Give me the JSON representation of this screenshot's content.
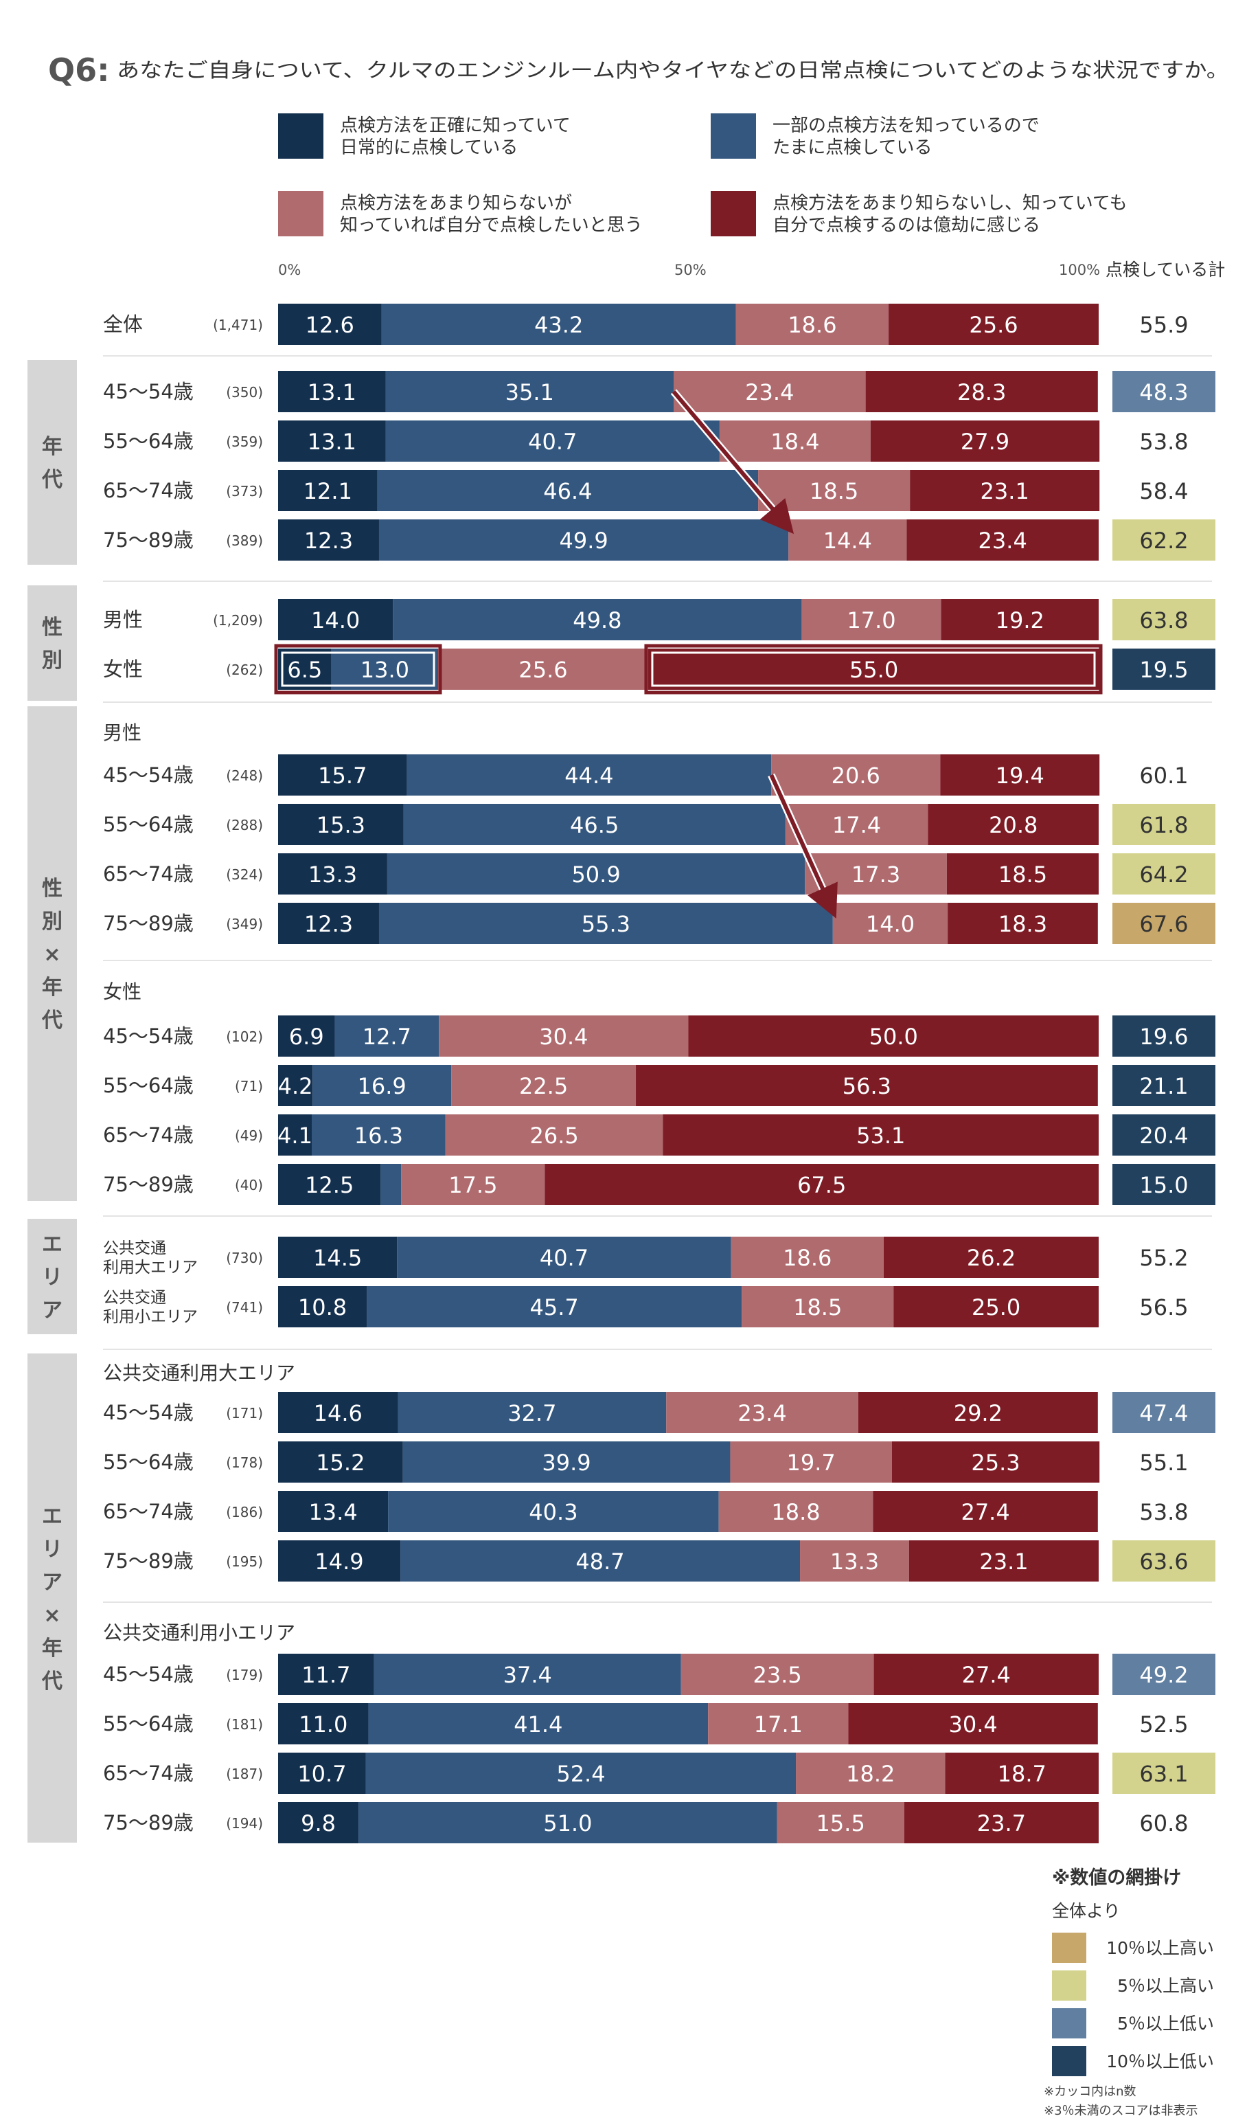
{
  "question": {
    "label": "Q6:",
    "text": "あなたご自身について、クルマのエンジンルーム内やタイヤなどの日常点検についてどのような状況ですか。"
  },
  "colors": {
    "s1": "#14304f",
    "s2": "#34577f",
    "s3": "#b06b6f",
    "s4": "#7e1c26",
    "sidebar": "#d6d6d6",
    "hl_up10": "#c8a86a",
    "hl_up5": "#d3d38e",
    "hl_down5": "#617fa0",
    "hl_down10": "#21415f",
    "arrow": "#7e1c26"
  },
  "legend": [
    {
      "key": "s1",
      "line1": "点検方法を正確に知っていて",
      "line2": "日常的に点検している"
    },
    {
      "key": "s2",
      "line1": "一部の点検方法を知っているので",
      "line2": "たまに点検している"
    },
    {
      "key": "s3",
      "line1": "点検方法をあまり知らないが",
      "line2": "知っていれば自分で点検したいと思う"
    },
    {
      "key": "s4",
      "line1": "点検方法をあまり知らないし、知っていても",
      "line2": "自分で点検するのは億劫に感じる"
    }
  ],
  "axis": {
    "t0": "0%",
    "t50": "50%",
    "t100": "100%",
    "total_header": "点検している計"
  },
  "shading_legend": {
    "title": "※数値の網掛け",
    "subtitle": "全体より",
    "items": [
      {
        "key": "up10",
        "label": "10％以上高い"
      },
      {
        "key": "up5",
        "label": "5％以上高い"
      },
      {
        "key": "down5",
        "label": "5％以上低い"
      },
      {
        "key": "down10",
        "label": "10％以上低い"
      }
    ]
  },
  "notes": [
    "※カッコ内はn数",
    "※3％未満のスコアは非表示"
  ],
  "chart_data": {
    "type": "bar",
    "orientation": "horizontal",
    "stacked": true,
    "percent": true,
    "xlim": [
      0,
      100
    ],
    "series_names": [
      "点検方法を正確に知っていて日常的に点検している",
      "一部の点検方法を知っているのでたまに点検している",
      "点検方法をあまり知らないが知っていれば自分で点検したいと思う",
      "点検方法をあまり知らないし、知っていても自分で点検するのは億劫に感じる"
    ],
    "groups": [
      {
        "side": "",
        "subheads": [],
        "rows": [
          {
            "label": "全体",
            "n": "(1,471)",
            "values": [
              12.6,
              43.2,
              18.6,
              25.6
            ],
            "total": "55.9",
            "hl": ""
          }
        ]
      },
      {
        "side": "年代",
        "subheads": [],
        "rows": [
          {
            "label": "45～54歳",
            "n": "(350)",
            "values": [
              13.1,
              35.1,
              23.4,
              28.3
            ],
            "total": "48.3",
            "hl": "down5"
          },
          {
            "label": "55～64歳",
            "n": "(359)",
            "values": [
              13.1,
              40.7,
              18.4,
              27.9
            ],
            "total": "53.8",
            "hl": ""
          },
          {
            "label": "65～74歳",
            "n": "(373)",
            "values": [
              12.1,
              46.4,
              18.5,
              23.1
            ],
            "total": "58.4",
            "hl": ""
          },
          {
            "label": "75～89歳",
            "n": "(389)",
            "values": [
              12.3,
              49.9,
              14.4,
              23.4
            ],
            "total": "62.2",
            "hl": "up5"
          }
        ]
      },
      {
        "side": "性別",
        "subheads": [],
        "rows": [
          {
            "label": "男性",
            "n": "(1,209)",
            "values": [
              14.0,
              49.8,
              17.0,
              19.2
            ],
            "total": "63.8",
            "hl": "up5"
          },
          {
            "label": "女性",
            "n": "(262)",
            "values": [
              6.5,
              13.0,
              25.6,
              55.0
            ],
            "total": "19.5",
            "hl": "down10"
          }
        ]
      },
      {
        "side": "性別×年代",
        "subheads": [
          {
            "before": 0,
            "text": "男性"
          },
          {
            "before": 4,
            "text": "女性"
          }
        ],
        "rows": [
          {
            "label": "45～54歳",
            "n": "(248)",
            "values": [
              15.7,
              44.4,
              20.6,
              19.4
            ],
            "total": "60.1",
            "hl": ""
          },
          {
            "label": "55～64歳",
            "n": "(288)",
            "values": [
              15.3,
              46.5,
              17.4,
              20.8
            ],
            "total": "61.8",
            "hl": "up5"
          },
          {
            "label": "65～74歳",
            "n": "(324)",
            "values": [
              13.3,
              50.9,
              17.3,
              18.5
            ],
            "total": "64.2",
            "hl": "up5"
          },
          {
            "label": "75～89歳",
            "n": "(349)",
            "values": [
              12.3,
              55.3,
              14.0,
              18.3
            ],
            "total": "67.6",
            "hl": "up10"
          },
          {
            "label": "45～54歳",
            "n": "(102)",
            "values": [
              6.9,
              12.7,
              30.4,
              50.0
            ],
            "total": "19.6",
            "hl": "down10"
          },
          {
            "label": "55～64歳",
            "n": "(71)",
            "values": [
              4.2,
              16.9,
              22.5,
              56.3
            ],
            "total": "21.1",
            "hl": "down10"
          },
          {
            "label": "65～74歳",
            "n": "(49)",
            "values": [
              4.1,
              16.3,
              26.5,
              53.1
            ],
            "total": "20.4",
            "hl": "down10"
          },
          {
            "label": "75～89歳",
            "n": "(40)",
            "values": [
              12.5,
              2.5,
              17.5,
              67.5
            ],
            "total": "15.0",
            "hl": "down10"
          }
        ]
      },
      {
        "side": "エリア",
        "subheads": [],
        "rows": [
          {
            "label": "公共交通\n利用大エリア",
            "n": "(730)",
            "values": [
              14.5,
              40.7,
              18.6,
              26.2
            ],
            "total": "55.2",
            "hl": ""
          },
          {
            "label": "公共交通\n利用小エリア",
            "n": "(741)",
            "values": [
              10.8,
              45.7,
              18.5,
              25.0
            ],
            "total": "56.5",
            "hl": ""
          }
        ]
      },
      {
        "side": "エリア×年代",
        "subheads": [
          {
            "before": 0,
            "text": "公共交通利用大エリア"
          },
          {
            "before": 4,
            "text": "公共交通利用小エリア"
          }
        ],
        "rows": [
          {
            "label": "45～54歳",
            "n": "(171)",
            "values": [
              14.6,
              32.7,
              23.4,
              29.2
            ],
            "total": "47.4",
            "hl": "down5"
          },
          {
            "label": "55～64歳",
            "n": "(178)",
            "values": [
              15.2,
              39.9,
              19.7,
              25.3
            ],
            "total": "55.1",
            "hl": ""
          },
          {
            "label": "65～74歳",
            "n": "(186)",
            "values": [
              13.4,
              40.3,
              18.8,
              27.4
            ],
            "total": "53.8",
            "hl": ""
          },
          {
            "label": "75～89歳",
            "n": "(195)",
            "values": [
              14.9,
              48.7,
              13.3,
              23.1
            ],
            "total": "63.6",
            "hl": "up5"
          },
          {
            "label": "45～54歳",
            "n": "(179)",
            "values": [
              11.7,
              37.4,
              23.5,
              27.4
            ],
            "total": "49.2",
            "hl": "down5"
          },
          {
            "label": "55～64歳",
            "n": "(181)",
            "values": [
              11.0,
              41.4,
              17.1,
              30.4
            ],
            "total": "52.5",
            "hl": ""
          },
          {
            "label": "65～74歳",
            "n": "(187)",
            "values": [
              10.7,
              52.4,
              18.2,
              18.7
            ],
            "total": "63.1",
            "hl": "up5"
          },
          {
            "label": "75～89歳",
            "n": "(194)",
            "values": [
              9.8,
              51.0,
              15.5,
              23.7
            ],
            "total": "60.8",
            "hl": ""
          }
        ]
      }
    ]
  }
}
